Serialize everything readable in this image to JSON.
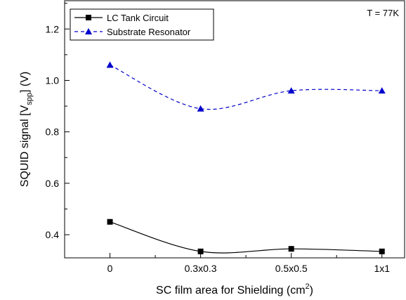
{
  "chart_data": {
    "type": "line",
    "categories": [
      "0",
      "0.3x0.3",
      "0.5x0.5",
      "1x1"
    ],
    "x": [
      0,
      1,
      2,
      3
    ],
    "xlabel": "SC film area for Shielding (cm²)",
    "ylabel": "SQUID signal [V_spp] (V)",
    "ylabel_parts": {
      "main": "SQUID signal [V",
      "sub": "spp",
      "end": "] (V)"
    },
    "xlabel_parts": {
      "main": "SC film area for Shielding (cm",
      "sup": "2",
      "end": ")"
    },
    "xlim": [
      -0.5,
      3.25
    ],
    "ylim": [
      0.31,
      1.31
    ],
    "yticks": [
      0.4,
      0.6,
      0.8,
      1.0,
      1.2
    ],
    "ytick_labels": [
      "0.4",
      "0.6",
      "0.8",
      "1.0",
      "1.2"
    ],
    "annotation": "T = 77K",
    "legend_position": "top-left",
    "grid": false,
    "series": [
      {
        "name": "LC Tank Circuit",
        "values": [
          0.45,
          0.335,
          0.345,
          0.335
        ],
        "marker": "square",
        "line": "solid",
        "color": "#000000"
      },
      {
        "name": "Substrate Resonator",
        "values": [
          1.06,
          0.89,
          0.96,
          0.96
        ],
        "marker": "triangle",
        "line": "dashed",
        "color": "#0000cc"
      }
    ]
  }
}
